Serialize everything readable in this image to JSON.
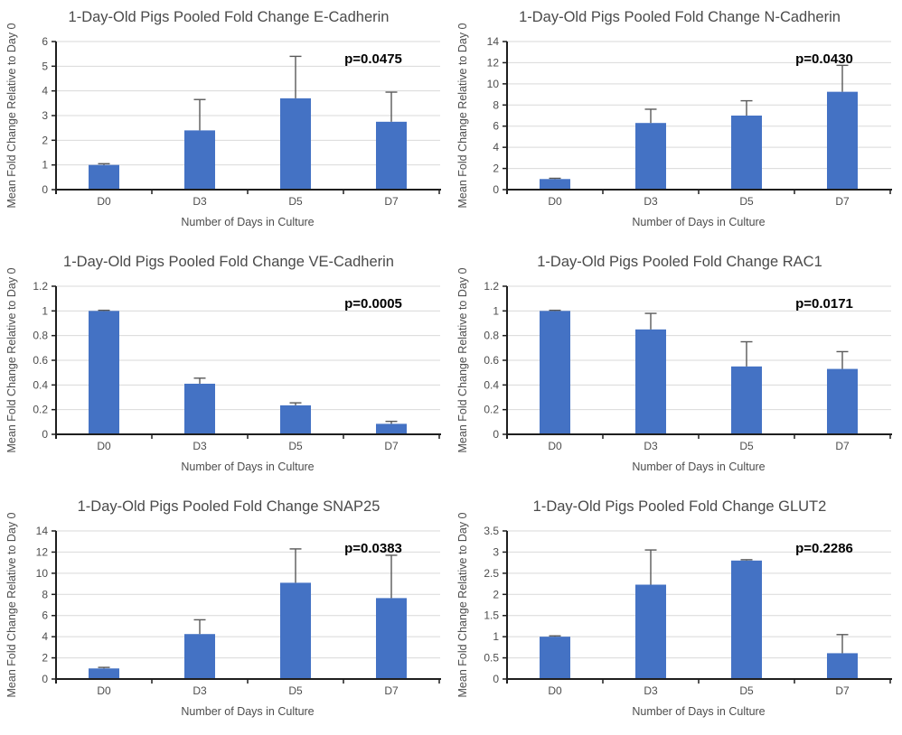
{
  "figure": {
    "background": "#ffffff",
    "layout": {
      "columns": 2,
      "rows": 3
    },
    "colors": {
      "bar": "#4472C4",
      "grid": "#D9D9D9",
      "axis": "#1f1f1f",
      "error": "#595959",
      "title_text": "#4a4a4a",
      "tick_text": "#4d4d4d",
      "p_text": "#000000"
    }
  },
  "chart_data": [
    {
      "type": "bar",
      "gene": "E-Cadherin",
      "title": "1-Day-Old Pigs Pooled Fold Change E-Cadherin",
      "p_label": "p=0.0475",
      "categories": [
        "D0",
        "D3",
        "D5",
        "D7"
      ],
      "values": [
        1.0,
        2.4,
        3.7,
        2.75
      ],
      "error_plus": [
        0.05,
        1.25,
        1.7,
        1.2
      ],
      "xlabel": "Number of Days in Culture",
      "ylabel": "Mean Fold Change Relative to Day 0",
      "ylim": [
        0,
        6
      ],
      "yticks": [
        0,
        1,
        2,
        3,
        4,
        5,
        6
      ],
      "ytick_labels": [
        "0",
        "1",
        "2",
        "3",
        "4",
        "5",
        "6"
      ],
      "grid": true,
      "legend": "none"
    },
    {
      "type": "bar",
      "gene": "N-Cadherin",
      "title": "1-Day-Old Pigs Pooled Fold Change N-Cadherin",
      "p_label": "p=0.0430",
      "categories": [
        "D0",
        "D3",
        "D5",
        "D7"
      ],
      "values": [
        1.0,
        6.3,
        7.0,
        9.25
      ],
      "error_plus": [
        0.07,
        1.3,
        1.4,
        2.5
      ],
      "xlabel": "Number of Days in Culture",
      "ylabel": "Mean Fold Change Relative to Day 0",
      "ylim": [
        0,
        14
      ],
      "yticks": [
        0,
        2,
        4,
        6,
        8,
        10,
        12,
        14
      ],
      "ytick_labels": [
        "0",
        "2",
        "4",
        "6",
        "8",
        "10",
        "12",
        "14"
      ],
      "grid": true,
      "legend": "none"
    },
    {
      "type": "bar",
      "gene": "VE-Cadherin",
      "title": "1-Day-Old Pigs Pooled Fold Change VE-Cadherin",
      "p_label": "p=0.0005",
      "categories": [
        "D0",
        "D3",
        "D5",
        "D7"
      ],
      "values": [
        1.0,
        0.41,
        0.235,
        0.085
      ],
      "error_plus": [
        0.005,
        0.045,
        0.02,
        0.02
      ],
      "xlabel": "Number of Days in Culture",
      "ylabel": "Mean Fold Change Relative to Day 0",
      "ylim": [
        0,
        1.2
      ],
      "yticks": [
        0,
        0.2,
        0.4,
        0.6,
        0.8,
        1,
        1.2
      ],
      "ytick_labels": [
        "0",
        "0.2",
        "0.4",
        "0.6",
        "0.8",
        "1",
        "1.2"
      ],
      "grid": true,
      "legend": "none"
    },
    {
      "type": "bar",
      "gene": "RAC1",
      "title": "1-Day-Old Pigs Pooled Fold Change RAC1",
      "p_label": "p=0.0171",
      "categories": [
        "D0",
        "D3",
        "D5",
        "D7"
      ],
      "values": [
        1.0,
        0.85,
        0.55,
        0.53
      ],
      "error_plus": [
        0.005,
        0.13,
        0.2,
        0.14
      ],
      "xlabel": "Number of Days in Culture",
      "ylabel": "Mean Fold Change Relative to Day 0",
      "ylim": [
        0,
        1.2
      ],
      "yticks": [
        0,
        0.2,
        0.4,
        0.6,
        0.8,
        1,
        1.2
      ],
      "ytick_labels": [
        "0",
        "0.2",
        "0.4",
        "0.6",
        "0.8",
        "1",
        "1.2"
      ],
      "grid": true,
      "legend": "none"
    },
    {
      "type": "bar",
      "gene": "SNAP25",
      "title": "1-Day-Old Pigs Pooled Fold Change SNAP25",
      "p_label": "p=0.0383",
      "categories": [
        "D0",
        "D3",
        "D5",
        "D7"
      ],
      "values": [
        1.0,
        4.25,
        9.1,
        7.65
      ],
      "error_plus": [
        0.1,
        1.35,
        3.2,
        4.05
      ],
      "xlabel": "Number of Days in Culture",
      "ylabel": "Mean  Fold Change Relative to Day 0",
      "ylim": [
        0,
        14
      ],
      "yticks": [
        0,
        2,
        4,
        6,
        8,
        10,
        12,
        14
      ],
      "ytick_labels": [
        "0",
        "2",
        "4",
        "6",
        "8",
        "10",
        "12",
        "14"
      ],
      "grid": true,
      "legend": "none"
    },
    {
      "type": "bar",
      "gene": "GLUT2",
      "title": "1-Day-Old Pigs Pooled Fold Change GLUT2",
      "p_label": "p=0.2286",
      "categories": [
        "D0",
        "D3",
        "D5",
        "D7"
      ],
      "values": [
        1.0,
        2.23,
        2.8,
        0.61
      ],
      "error_plus": [
        0.02,
        0.82,
        0.02,
        0.44
      ],
      "xlabel": "Number of Days in Culture",
      "ylabel": "Mean Fold Change Relative to Day 0",
      "ylim": [
        0,
        3.5
      ],
      "yticks": [
        0,
        0.5,
        1,
        1.5,
        2,
        2.5,
        3,
        3.5
      ],
      "ytick_labels": [
        "0",
        "0.5",
        "1",
        "1.5",
        "2",
        "2.5",
        "3",
        "3.5"
      ],
      "grid": true,
      "legend": "none"
    }
  ]
}
